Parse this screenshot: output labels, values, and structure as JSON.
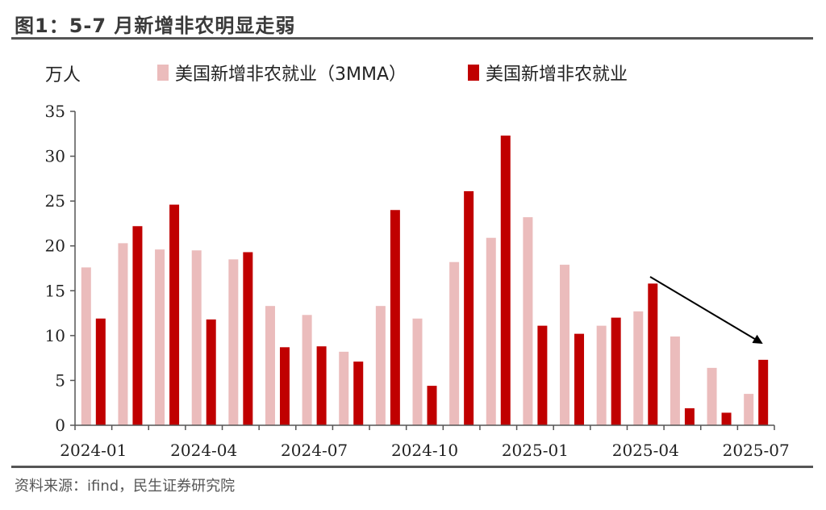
{
  "title": "图1：5-7 月新增非农明显走弱",
  "source": "资料来源：ifind，民生证券研究院",
  "colors": {
    "series_3mma": "#ebbcbc",
    "series_monthly": "#c00000",
    "axis": "#555555",
    "arrow": "#000000"
  },
  "chart_data": {
    "type": "bar",
    "unit_label": "万人",
    "categories": [
      "2024-01",
      "2024-02",
      "2024-03",
      "2024-04",
      "2024-05",
      "2024-06",
      "2024-07",
      "2024-08",
      "2024-09",
      "2024-10",
      "2024-11",
      "2024-12",
      "2025-01",
      "2025-02",
      "2025-03",
      "2025-04",
      "2025-05",
      "2025-06",
      "2025-07"
    ],
    "x_tick_labels": [
      "2024-01",
      "2024-04",
      "2024-07",
      "2024-10",
      "2025-01",
      "2025-04",
      "2025-07"
    ],
    "series": [
      {
        "name": "美国新增非农就业（3MMA）",
        "values": [
          17.6,
          20.3,
          19.6,
          19.5,
          18.5,
          13.3,
          12.3,
          8.2,
          13.3,
          11.9,
          18.2,
          20.9,
          23.2,
          17.9,
          11.1,
          12.7,
          9.9,
          6.4,
          3.5
        ]
      },
      {
        "name": "美国新增非农就业",
        "values": [
          11.9,
          22.2,
          24.6,
          11.8,
          19.3,
          8.7,
          8.8,
          7.1,
          24.0,
          4.4,
          26.1,
          32.3,
          11.1,
          10.2,
          12.0,
          15.8,
          1.9,
          1.4,
          7.3
        ]
      }
    ],
    "ylim": [
      0,
      35
    ],
    "yticks": [
      0,
      5,
      10,
      15,
      20,
      25,
      30,
      35
    ],
    "annotation": "downward trend arrow"
  }
}
